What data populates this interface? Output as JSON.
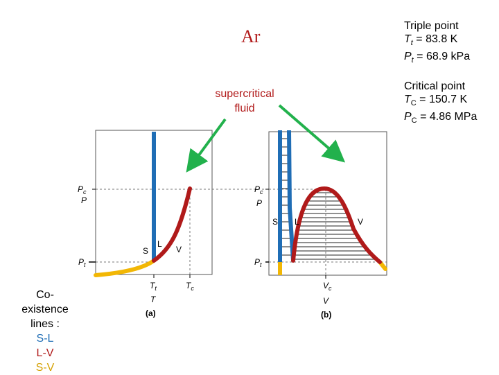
{
  "title": "Ar",
  "triple_point": {
    "heading": "Triple point",
    "t_symbol": "T",
    "t_sub": "t",
    "t_value": " = 83.8 K",
    "p_symbol": "P",
    "p_sub": "t",
    "p_value": " = 68.9 kPa"
  },
  "critical_point": {
    "heading": "Critical point",
    "t_symbol": "T",
    "t_sub": "C",
    "t_value": " = 150.7 K",
    "p_symbol": "P",
    "p_sub": "C",
    "p_value": " = 4.86 MPa"
  },
  "supercritical": {
    "line1": "supercritical",
    "line2": "fluid"
  },
  "legend": {
    "line1": "Co-existence",
    "line2": "lines :",
    "sl": "S-L",
    "lv": "L-V",
    "sv": "S-V"
  },
  "diagram_a": {
    "pc_label": "P",
    "pc_sub": "c",
    "p_axis": "P",
    "pt_label": "P",
    "pt_sub": "t",
    "s_label": "S",
    "l_label": "L",
    "v_label": "V",
    "tt_label": "T",
    "tt_sub": "t",
    "tc_label": "T",
    "tc_sub": "c",
    "t_axis": "T",
    "caption": "(a)"
  },
  "diagram_b": {
    "pc_label": "P",
    "pc_sub": "c",
    "p_axis": "P",
    "pt_label": "P",
    "pt_sub": "t",
    "s_label": "S",
    "l_label": "L",
    "v_label": "V",
    "vc_label": "V",
    "vc_sub": "c",
    "v_axis": "V",
    "caption": "(b)"
  },
  "colors": {
    "solid_liquid": "#1f6db5",
    "liquid_vapor": "#b01a1a",
    "solid_vapor": "#f2b705",
    "arrow": "#22b14c",
    "title": "#b11a1a"
  }
}
